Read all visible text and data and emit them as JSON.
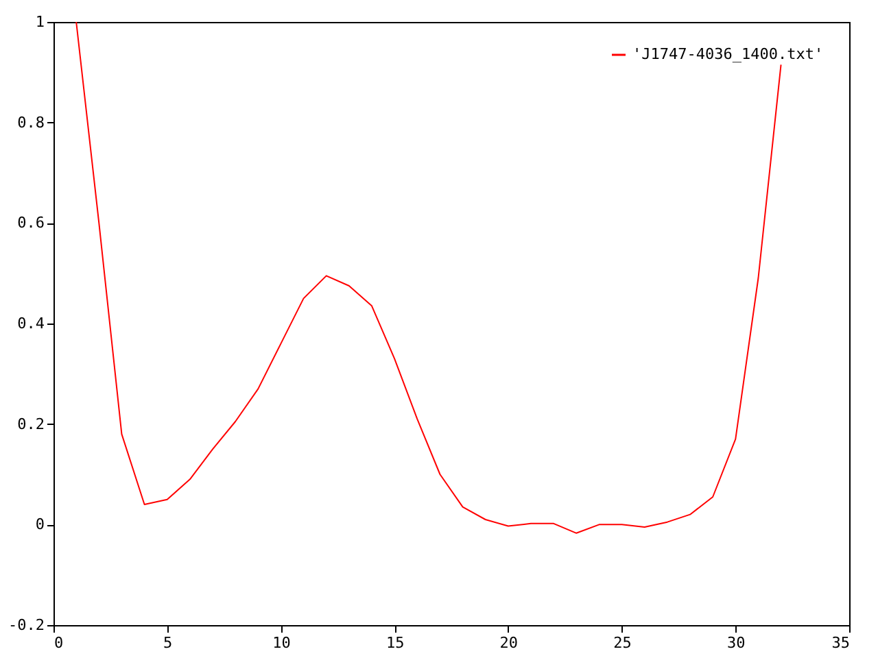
{
  "chart_data": {
    "type": "line",
    "x": [
      1,
      2,
      3,
      4,
      5,
      6,
      7,
      8,
      9,
      10,
      11,
      12,
      13,
      14,
      15,
      16,
      17,
      18,
      19,
      20,
      21,
      22,
      23,
      24,
      25,
      26,
      27,
      28,
      29,
      30,
      31,
      32
    ],
    "series": [
      {
        "name": "'J1747-4036_1400.txt'",
        "color": "#ff0000",
        "values": [
          1.0,
          0.6,
          0.18,
          0.04,
          0.05,
          0.09,
          0.15,
          0.205,
          0.27,
          0.36,
          0.45,
          0.495,
          0.475,
          0.435,
          0.33,
          0.21,
          0.1,
          0.035,
          0.01,
          -0.003,
          0.002,
          0.002,
          -0.017,
          0.0,
          0.0,
          -0.005,
          0.005,
          0.02,
          0.055,
          0.17,
          0.49,
          0.915
        ]
      }
    ],
    "xlim": [
      0,
      35
    ],
    "xticks": [
      0,
      5,
      10,
      15,
      20,
      25,
      30,
      35
    ],
    "ylim": [
      -0.2,
      1
    ],
    "yticks": [
      -0.2,
      0,
      0.2,
      0.4,
      0.6,
      0.8,
      1
    ],
    "grid": false,
    "legend": "top right",
    "marker": "none",
    "line_style": "solid"
  }
}
